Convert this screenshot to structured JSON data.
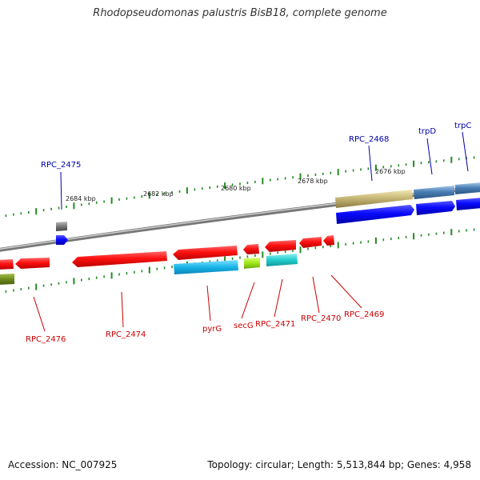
{
  "title": "Rhodopseudomonas palustris BisB18, complete genome",
  "footer": {
    "accession": "Accession: NC_007925",
    "stats": "Topology: circular; Length: 5,513,844 bp; Genes: 4,958"
  },
  "scale_labels": [
    "2684 kbp",
    "2682 kbp",
    "2680 kbp",
    "2678 kbp",
    "2676 kbp"
  ],
  "gene_labels_top": [
    "RPC_2475",
    "RPC_2468",
    "trpD",
    "trpC"
  ],
  "gene_labels_bottom": [
    "RPC_2476",
    "RPC_2474",
    "pyrG",
    "secG",
    "RPC_2471",
    "RPC_2470",
    "RPC_2469"
  ],
  "colors": {
    "forward_label": "#0000aa",
    "reverse_label": "#cc0000",
    "tick": "#228b22",
    "backbone": "#888888"
  }
}
